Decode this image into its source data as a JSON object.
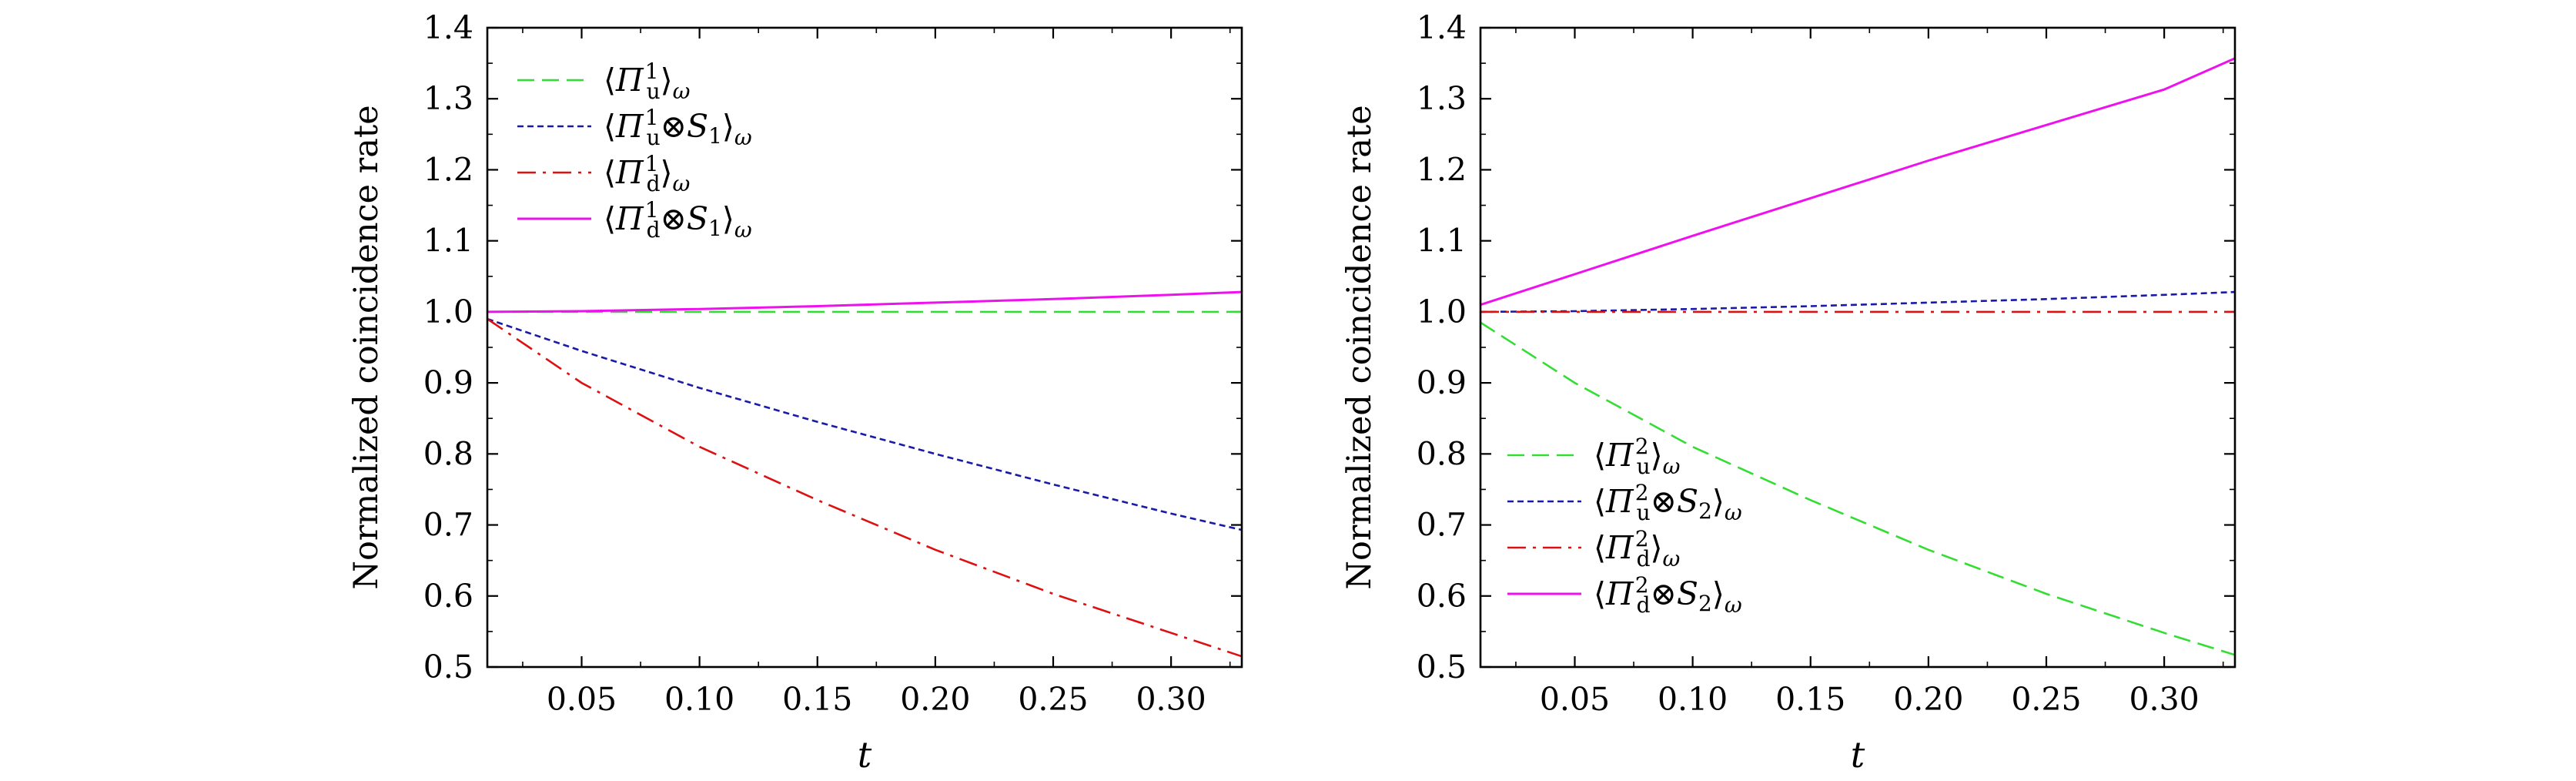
{
  "colors": {
    "green": "#33dd33",
    "blue": "#1a1aa8",
    "red": "#dd1111",
    "magenta": "#ee11ee",
    "axis": "#000000"
  },
  "chart_data": [
    {
      "type": "line",
      "xlabel": "t",
      "ylabel": "Normalized coincidence rate",
      "xlim": [
        0.01,
        0.33
      ],
      "ylim": [
        0.5,
        1.4
      ],
      "xticks": [
        "0.05",
        "0.10",
        "0.15",
        "0.20",
        "0.25",
        "0.30"
      ],
      "yticks": [
        "0.5",
        "0.6",
        "0.7",
        "0.8",
        "0.9",
        "1.0",
        "1.1",
        "1.2",
        "1.3",
        "1.4"
      ],
      "grid": false,
      "legend_position": "top-left",
      "x": [
        0.01,
        0.05,
        0.1,
        0.15,
        0.2,
        0.25,
        0.3,
        0.33
      ],
      "series": [
        {
          "name": "⟨Π¹u⟩ω",
          "color": "green",
          "dash": "dashed",
          "values": [
            1.0,
            1.0,
            1.0,
            1.0,
            1.0,
            1.0,
            1.0,
            1.0
          ]
        },
        {
          "name": "⟨Π¹u⊗S1⟩ω",
          "color": "blue",
          "dash": "dotted",
          "values": [
            0.99,
            0.945,
            0.893,
            0.845,
            0.8,
            0.757,
            0.716,
            0.693
          ]
        },
        {
          "name": "⟨Π¹d⟩ω",
          "color": "red",
          "dash": "dashdot",
          "values": [
            0.99,
            0.9,
            0.81,
            0.735,
            0.665,
            0.603,
            0.548,
            0.515
          ]
        },
        {
          "name": "⟨Π¹d⊗S1⟩ω",
          "color": "magenta",
          "dash": "solid",
          "values": [
            1.0,
            1.001,
            1.004,
            1.008,
            1.013,
            1.018,
            1.024,
            1.028
          ]
        }
      ],
      "legend": [
        {
          "sym": "Π",
          "sup": "1",
          "sub": "u",
          "extra": "",
          "extra_sub": "",
          "close_sub": "ω"
        },
        {
          "sym": "Π",
          "sup": "1",
          "sub": "u",
          "extra": "⊗S",
          "extra_sub": "1",
          "close_sub": "ω"
        },
        {
          "sym": "Π",
          "sup": "1",
          "sub": "d",
          "extra": "",
          "extra_sub": "",
          "close_sub": "ω"
        },
        {
          "sym": "Π",
          "sup": "1",
          "sub": "d",
          "extra": "⊗S",
          "extra_sub": "1",
          "close_sub": "ω"
        }
      ]
    },
    {
      "type": "line",
      "xlabel": "t",
      "ylabel": "Normalized coincidence rate",
      "xlim": [
        0.01,
        0.33
      ],
      "ylim": [
        0.5,
        1.4
      ],
      "xticks": [
        "0.05",
        "0.10",
        "0.15",
        "0.20",
        "0.25",
        "0.30"
      ],
      "yticks": [
        "0.5",
        "0.6",
        "0.7",
        "0.8",
        "0.9",
        "1.0",
        "1.1",
        "1.2",
        "1.3",
        "1.4"
      ],
      "grid": false,
      "legend_position": "bottom-left",
      "x": [
        0.01,
        0.05,
        0.1,
        0.15,
        0.2,
        0.25,
        0.3,
        0.33
      ],
      "series": [
        {
          "name": "⟨Π²u⟩ω",
          "color": "green",
          "dash": "dashed",
          "values": [
            0.985,
            0.9,
            0.81,
            0.735,
            0.665,
            0.603,
            0.548,
            0.517
          ]
        },
        {
          "name": "⟨Π²u⊗S2⟩ω",
          "color": "blue",
          "dash": "dotted",
          "values": [
            1.0,
            1.001,
            1.004,
            1.008,
            1.013,
            1.018,
            1.024,
            1.028
          ]
        },
        {
          "name": "⟨Π²d⟩ω",
          "color": "red",
          "dash": "dashdot",
          "values": [
            1.0,
            1.0,
            1.0,
            1.0,
            1.0,
            1.0,
            1.0,
            1.0
          ]
        },
        {
          "name": "⟨Π²d⊗S2⟩ω",
          "color": "magenta",
          "dash": "solid",
          "values": [
            1.01,
            1.053,
            1.107,
            1.16,
            1.213,
            1.263,
            1.313,
            1.357
          ]
        }
      ],
      "legend": [
        {
          "sym": "Π",
          "sup": "2",
          "sub": "u",
          "extra": "",
          "extra_sub": "",
          "close_sub": "ω"
        },
        {
          "sym": "Π",
          "sup": "2",
          "sub": "u",
          "extra": "⊗S",
          "extra_sub": "2",
          "close_sub": "ω"
        },
        {
          "sym": "Π",
          "sup": "2",
          "sub": "d",
          "extra": "",
          "extra_sub": "",
          "close_sub": "ω"
        },
        {
          "sym": "Π",
          "sup": "2",
          "sub": "d",
          "extra": "⊗S",
          "extra_sub": "2",
          "close_sub": "ω"
        }
      ]
    }
  ]
}
